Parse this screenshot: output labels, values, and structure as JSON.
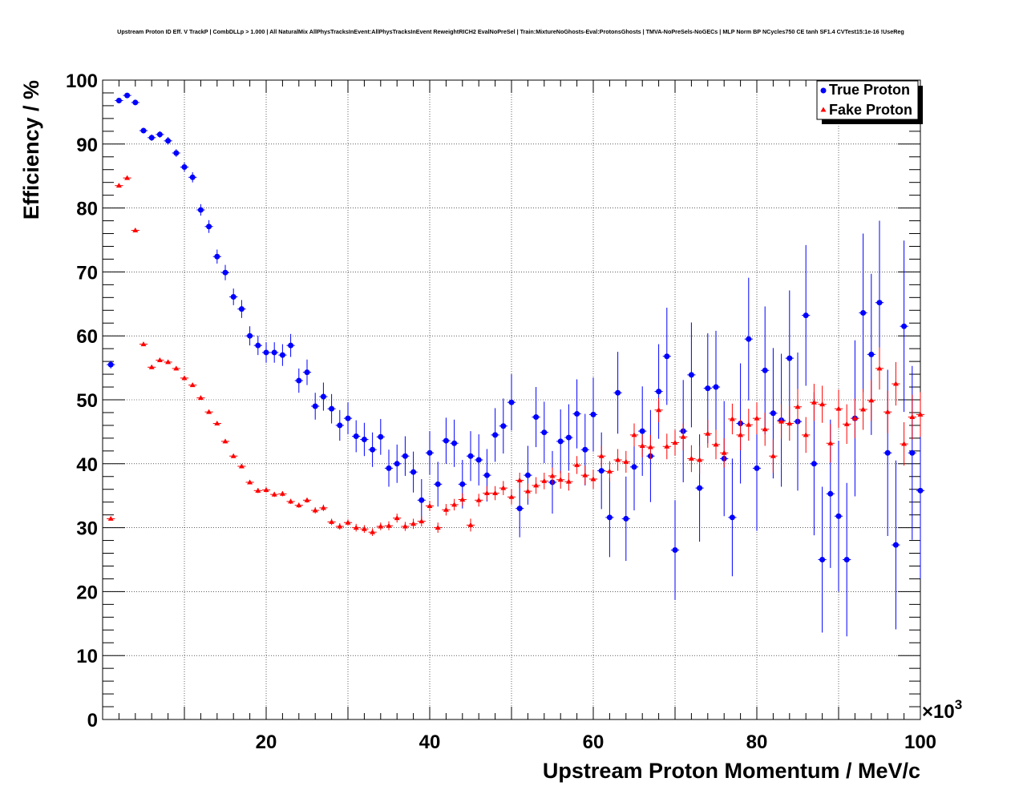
{
  "chart_data": {
    "type": "scatter",
    "title": "Upstream Proton ID Eff. V TrackP | CombDLLp > 1.000 | All NaturalMix AllPhysTracksInEvent:AllPhysTracksInEvent ReweightRICH2 EvalNoPreSel | Train:MixtureNoGhosts-Eval:ProtonsGhosts | TMVA-NoPreSels-NoGECs | MLP Norm BP NCycles750 CE tanh SF1.4 CVTest15:1e-16 !UseReg",
    "xlabel": "Upstream Proton Momentum / MeV/c",
    "ylabel": "Efficiency / %",
    "x_multiplier_label": "×10",
    "x_multiplier_exp": "3",
    "xlim": [
      0,
      100
    ],
    "ylim": [
      0,
      100
    ],
    "x_ticks": [
      20,
      40,
      60,
      80,
      100
    ],
    "y_ticks": [
      0,
      10,
      20,
      30,
      40,
      50,
      60,
      70,
      80,
      90,
      100
    ],
    "grid": true,
    "legend_position": "top-right",
    "series": [
      {
        "name": "True Proton",
        "color": "#0000ff",
        "marker": "circle",
        "x": [
          1,
          2,
          3,
          4,
          5,
          6,
          7,
          8,
          9,
          10,
          11,
          12,
          13,
          14,
          15,
          16,
          17,
          18,
          19,
          20,
          21,
          22,
          23,
          24,
          25,
          26,
          27,
          28,
          29,
          30,
          31,
          32,
          33,
          34,
          35,
          36,
          37,
          38,
          39,
          40,
          41,
          42,
          43,
          44,
          45,
          46,
          47,
          48,
          49,
          50,
          51,
          52,
          53,
          54,
          55,
          56,
          57,
          58,
          59,
          60,
          61,
          62,
          63,
          64,
          65,
          66,
          67,
          68,
          69,
          70,
          71,
          72,
          73,
          74,
          75,
          76,
          77,
          78,
          79,
          80,
          81,
          82,
          83,
          84,
          85,
          86,
          87,
          88,
          89,
          90,
          91,
          92,
          93,
          94,
          95,
          96,
          97,
          98,
          99,
          100
        ],
        "y": [
          55.5,
          96.8,
          97.6,
          96.5,
          92.1,
          91.0,
          91.5,
          90.5,
          88.6,
          86.4,
          84.8,
          79.7,
          77.1,
          72.4,
          69.9,
          66.1,
          64.2,
          60.0,
          58.5,
          57.4,
          57.4,
          57.0,
          58.5,
          53.0,
          54.3,
          49.0,
          50.5,
          48.6,
          46.0,
          47.1,
          44.3,
          43.8,
          42.2,
          44.2,
          39.3,
          40.0,
          41.2,
          38.7,
          34.3,
          41.7,
          36.8,
          43.6,
          43.2,
          36.8,
          41.2,
          40.6,
          38.2,
          44.5,
          45.9,
          49.6,
          33.0,
          38.2,
          47.3,
          44.9,
          37.1,
          43.5,
          44.1,
          47.8,
          42.2,
          47.7,
          38.9,
          31.6,
          51.1,
          31.4,
          39.5,
          45.1,
          41.2,
          51.3,
          56.8,
          26.5,
          45.1,
          53.9,
          36.2,
          51.8,
          52.0,
          40.8,
          31.6,
          46.3,
          59.5,
          39.3,
          54.6,
          47.9,
          46.8,
          56.5,
          46.6,
          63.2,
          40.0,
          25.0,
          35.3,
          31.8,
          25.0,
          47.1,
          63.6,
          57.1,
          65.2,
          41.7,
          27.3,
          61.5,
          41.7,
          35.8
        ],
        "yerr": [
          0.6,
          0.4,
          0.4,
          0.4,
          0.4,
          0.5,
          0.5,
          0.6,
          0.6,
          0.7,
          0.8,
          0.9,
          1.0,
          1.1,
          1.2,
          1.3,
          1.4,
          1.5,
          1.5,
          1.6,
          1.6,
          1.7,
          1.8,
          1.9,
          2.0,
          2.1,
          2.2,
          2.3,
          2.4,
          2.5,
          2.5,
          2.6,
          2.7,
          2.8,
          2.9,
          3.0,
          3.1,
          3.2,
          3.3,
          3.4,
          3.5,
          3.6,
          3.7,
          3.8,
          3.9,
          4.0,
          4.1,
          4.2,
          4.3,
          4.4,
          4.5,
          4.6,
          4.7,
          4.8,
          4.9,
          5.0,
          5.2,
          5.4,
          5.6,
          5.8,
          6.0,
          6.2,
          6.4,
          6.6,
          6.8,
          7.0,
          7.2,
          7.4,
          7.6,
          7.8,
          8.0,
          8.2,
          8.4,
          8.6,
          8.8,
          9.0,
          9.2,
          9.4,
          9.6,
          9.8,
          10.0,
          10.2,
          10.4,
          10.6,
          10.8,
          11.0,
          11.2,
          11.4,
          11.6,
          11.8,
          12.0,
          12.2,
          12.4,
          12.6,
          12.8,
          13.0,
          13.2,
          13.4,
          13.6,
          13.8
        ]
      },
      {
        "name": "Fake Proton",
        "color": "#ff0000",
        "marker": "triangle",
        "x": [
          1,
          2,
          3,
          4,
          5,
          6,
          7,
          8,
          9,
          10,
          11,
          12,
          13,
          14,
          15,
          16,
          17,
          18,
          19,
          20,
          21,
          22,
          23,
          24,
          25,
          26,
          27,
          28,
          29,
          30,
          31,
          32,
          33,
          34,
          35,
          36,
          37,
          38,
          39,
          40,
          41,
          42,
          43,
          44,
          45,
          46,
          47,
          48,
          49,
          50,
          51,
          52,
          53,
          54,
          55,
          56,
          57,
          58,
          59,
          60,
          61,
          62,
          63,
          64,
          65,
          66,
          67,
          68,
          69,
          70,
          71,
          72,
          73,
          74,
          75,
          76,
          77,
          78,
          79,
          80,
          81,
          82,
          83,
          84,
          85,
          86,
          87,
          88,
          89,
          90,
          91,
          92,
          93,
          94,
          95,
          96,
          97,
          98,
          99,
          100
        ],
        "y": [
          31.4,
          83.5,
          84.7,
          76.5,
          58.7,
          55.1,
          56.2,
          55.9,
          54.9,
          53.4,
          52.3,
          50.3,
          48.1,
          46.3,
          43.5,
          41.2,
          39.6,
          37.1,
          35.8,
          35.9,
          35.2,
          35.3,
          34.1,
          33.5,
          34.3,
          32.7,
          33.1,
          30.9,
          30.2,
          30.8,
          30.0,
          29.8,
          29.3,
          30.2,
          30.3,
          31.5,
          30.2,
          30.6,
          31.0,
          33.4,
          30.0,
          32.8,
          33.6,
          34.4,
          30.4,
          34.3,
          35.4,
          35.4,
          36.2,
          34.8,
          37.4,
          35.7,
          36.6,
          37.3,
          38.1,
          37.5,
          37.2,
          39.8,
          38.2,
          37.6,
          41.2,
          38.8,
          40.6,
          40.3,
          44.5,
          42.8,
          42.6,
          48.4,
          42.7,
          43.3,
          44.2,
          40.8,
          40.6,
          44.7,
          43.0,
          41.7,
          47.0,
          44.5,
          46.1,
          47.1,
          45.4,
          41.2,
          46.6,
          46.3,
          48.9,
          44.5,
          49.6,
          49.3,
          43.2,
          48.6,
          46.2,
          47.1,
          48.5,
          49.9,
          54.9,
          48.1,
          52.5,
          43.1,
          47.3,
          47.7
        ],
        "yerr": [
          0.2,
          0.3,
          0.3,
          0.3,
          0.3,
          0.3,
          0.3,
          0.3,
          0.3,
          0.3,
          0.3,
          0.3,
          0.3,
          0.3,
          0.3,
          0.3,
          0.3,
          0.3,
          0.4,
          0.4,
          0.4,
          0.4,
          0.4,
          0.4,
          0.4,
          0.5,
          0.5,
          0.5,
          0.5,
          0.5,
          0.6,
          0.6,
          0.6,
          0.6,
          0.7,
          0.7,
          0.7,
          0.8,
          0.8,
          0.8,
          0.8,
          0.9,
          0.9,
          1.0,
          1.0,
          1.0,
          1.1,
          1.1,
          1.1,
          1.2,
          1.2,
          1.2,
          1.3,
          1.3,
          1.3,
          1.4,
          1.4,
          1.4,
          1.5,
          1.5,
          1.6,
          1.6,
          1.7,
          1.7,
          1.8,
          1.8,
          1.9,
          1.9,
          2.0,
          2.0,
          2.1,
          2.1,
          2.2,
          2.2,
          2.3,
          2.3,
          2.4,
          2.4,
          2.5,
          2.5,
          2.6,
          2.6,
          2.7,
          2.7,
          2.8,
          2.8,
          2.9,
          2.9,
          3.0,
          3.0,
          3.1,
          3.1,
          3.2,
          3.2,
          3.3,
          3.3,
          3.4,
          3.4,
          3.5,
          3.5
        ]
      }
    ]
  }
}
